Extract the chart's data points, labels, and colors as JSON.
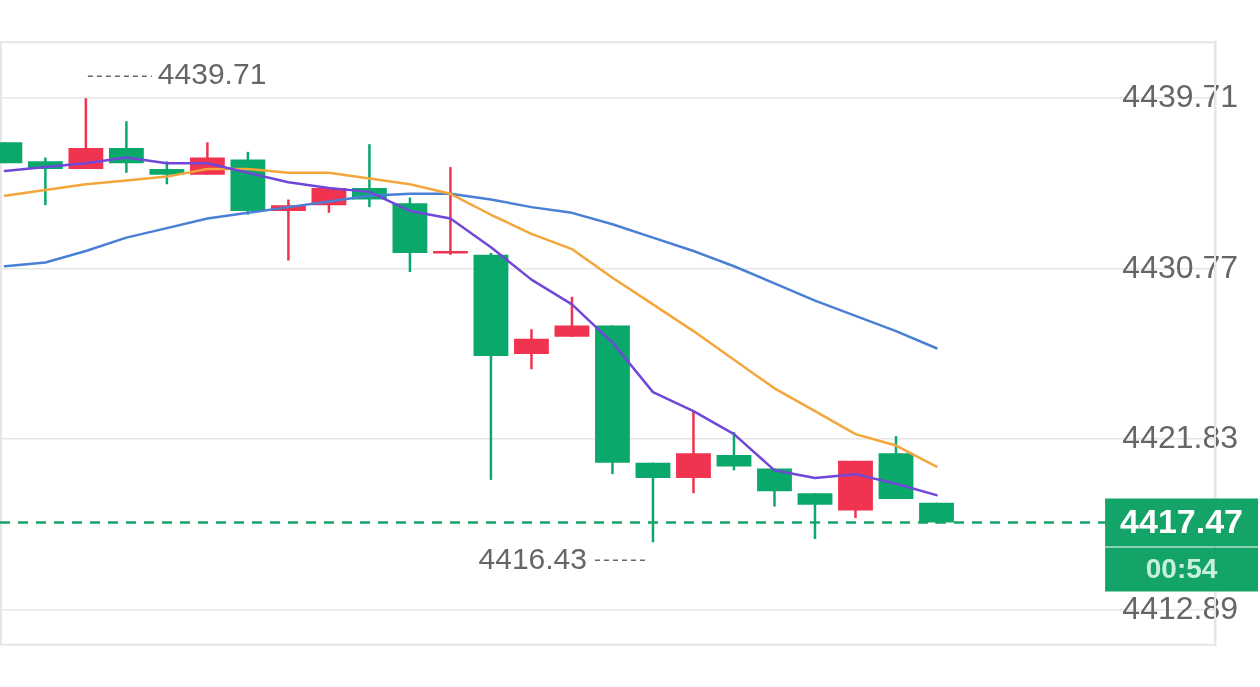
{
  "chart_data": {
    "type": "candlestick",
    "categories": [
      null,
      null,
      null,
      null,
      null,
      null,
      null,
      null,
      null,
      null,
      null,
      null,
      null,
      null,
      null,
      null,
      null,
      null,
      null,
      null,
      null,
      null,
      null,
      null
    ],
    "ohlc": [
      [
        4437.4,
        4437.4,
        4436.3,
        4436.3
      ],
      [
        4436.4,
        4436.6,
        4434.1,
        4436.0
      ],
      [
        4436.0,
        4439.71,
        4436.0,
        4437.1
      ],
      [
        4437.1,
        4438.5,
        4435.8,
        4436.3
      ],
      [
        4436.0,
        4436.4,
        4435.2,
        4435.7
      ],
      [
        4435.7,
        4437.4,
        4435.7,
        4436.6
      ],
      [
        4436.5,
        4436.9,
        4433.6,
        4433.8
      ],
      [
        4433.8,
        4434.4,
        4431.2,
        4434.1
      ],
      [
        4434.1,
        4435.0,
        4433.7,
        4435.0
      ],
      [
        4435.0,
        4437.3,
        4434.0,
        4434.4
      ],
      [
        4434.2,
        4434.5,
        4430.6,
        4431.6
      ],
      [
        4431.6,
        4436.1,
        4431.5,
        4431.7
      ],
      [
        4431.5,
        4431.6,
        4419.7,
        4426.2
      ],
      [
        4426.3,
        4427.6,
        4425.5,
        4427.1
      ],
      [
        4427.2,
        4429.3,
        4427.2,
        4427.8
      ],
      [
        4427.8,
        4427.8,
        4420.0,
        4420.6
      ],
      [
        4420.6,
        4420.6,
        4416.43,
        4419.8
      ],
      [
        4419.8,
        4423.3,
        4419.0,
        4421.1
      ],
      [
        4421.0,
        4422.2,
        4420.2,
        4420.4
      ],
      [
        4420.3,
        4420.3,
        4418.3,
        4419.1
      ],
      [
        4419.0,
        4419.0,
        4416.6,
        4418.4
      ],
      [
        4418.1,
        4420.7,
        4417.7,
        4420.7
      ],
      [
        4421.1,
        4422.0,
        4418.7,
        4418.7
      ],
      [
        4418.5,
        4418.5,
        4417.4,
        4417.47
      ]
    ],
    "colors": [
      "#0aa86b",
      "#0aa86b",
      "#f0334f",
      "#0aa86b",
      "#0aa86b",
      "#f0334f",
      "#0aa86b",
      "#f0334f",
      "#f0334f",
      "#0aa86b",
      "#0aa86b",
      "#f0334f",
      "#0aa86b",
      "#f0334f",
      "#f0334f",
      "#0aa86b",
      "#0aa86b",
      "#f0334f",
      "#0aa86b",
      "#0aa86b",
      "#0aa86b",
      "#f0334f",
      "#0aa86b",
      "#0aa86b"
    ],
    "series": [
      {
        "type": "line",
        "color": "#7047d8",
        "values": [
          4435.9,
          4436.1,
          4436.3,
          4436.6,
          4436.3,
          4436.3,
          4435.8,
          4435.3,
          4435.0,
          4434.8,
          4433.8,
          4433.4,
          4431.9,
          4430.2,
          4428.9,
          4426.9,
          4424.3,
          4423.3,
          4422.1,
          4420.2,
          4419.8,
          4420.0,
          4419.5,
          4418.9
        ]
      },
      {
        "type": "line",
        "color": "#f4a63a",
        "values": [
          4434.6,
          4434.9,
          4435.2,
          4435.4,
          4435.6,
          4436.0,
          4436.0,
          4435.8,
          4435.8,
          4435.5,
          4435.2,
          4434.7,
          4433.6,
          4432.6,
          4431.8,
          4430.3,
          4428.9,
          4427.5,
          4426.0,
          4424.5,
          4423.3,
          4422.1,
          4421.5,
          4420.4
        ]
      },
      {
        "type": "line",
        "color": "#4a7fd6",
        "values": [
          4430.9,
          4431.1,
          4431.7,
          4432.4,
          4432.9,
          4433.4,
          4433.7,
          4434.0,
          4434.3,
          4434.6,
          4434.7,
          4434.7,
          4434.4,
          4434.0,
          4433.7,
          4433.1,
          4432.4,
          4431.7,
          4430.9,
          4430.0,
          4429.1,
          4428.3,
          4427.5,
          4426.6
        ]
      }
    ],
    "ylim": [
      4411.0,
      4442.7
    ],
    "yticks": [
      4439.71,
      4430.77,
      4421.83,
      4412.89
    ],
    "grid": "y",
    "legend": false,
    "marker": "none",
    "line_style": "solid",
    "ref_lines": [
      {
        "axis": "y",
        "value": 4417.47,
        "label": "4417.47",
        "color": "#14a468",
        "line_style": "dashed"
      }
    ],
    "annotations": [
      "4439.71",
      "4416.43",
      "00:54"
    ]
  }
}
